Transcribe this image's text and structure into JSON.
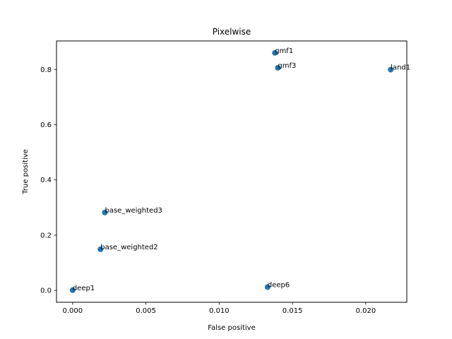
{
  "chart_data": {
    "type": "scatter",
    "title": "Pixelwise",
    "xlabel": "False positive",
    "ylabel": "True positive",
    "xlim": [
      -0.0011,
      0.0228
    ],
    "ylim": [
      -0.043,
      0.903
    ],
    "xticks": [
      0.0,
      0.005,
      0.01,
      0.015,
      0.02
    ],
    "xtick_labels": [
      "0.000",
      "0.005",
      "0.010",
      "0.015",
      "0.020"
    ],
    "yticks": [
      0.0,
      0.2,
      0.4,
      0.6,
      0.8
    ],
    "ytick_labels": [
      "0.0",
      "0.2",
      "0.4",
      "0.6",
      "0.8"
    ],
    "grid": false,
    "marker_color": "#1f77b4",
    "points": [
      {
        "label": "gmf1",
        "x": 0.0138,
        "y": 0.86
      },
      {
        "label": "gmf3",
        "x": 0.014,
        "y": 0.806
      },
      {
        "label": "land1",
        "x": 0.0217,
        "y": 0.799
      },
      {
        "label": "base_weighted3",
        "x": 0.0022,
        "y": 0.282
      },
      {
        "label": "base_weighted2",
        "x": 0.0019,
        "y": 0.149
      },
      {
        "label": "deep1",
        "x": 0.0,
        "y": 0.001
      },
      {
        "label": "deep6",
        "x": 0.0133,
        "y": 0.012
      }
    ]
  }
}
